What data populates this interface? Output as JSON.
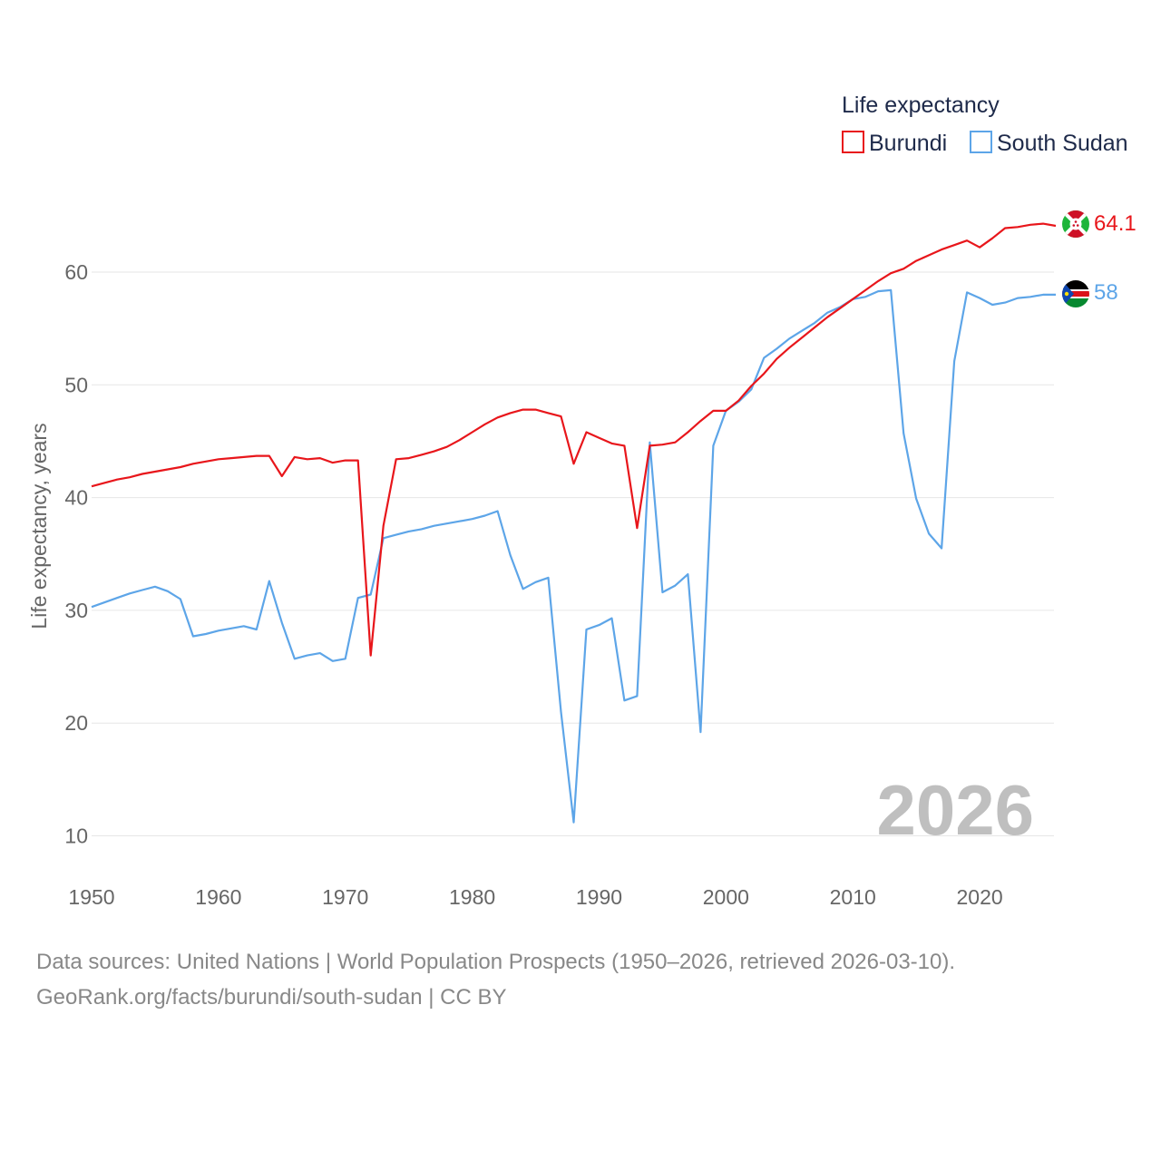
{
  "chart_data": {
    "type": "line",
    "title": "",
    "xlabel": "",
    "ylabel": "Life expectancy, years",
    "xlim": [
      1950,
      2026
    ],
    "ylim": [
      5,
      70
    ],
    "yticks": [
      10,
      20,
      30,
      40,
      50,
      60
    ],
    "xticks": [
      1950,
      1960,
      1970,
      1980,
      1990,
      2000,
      2010,
      2020
    ],
    "grid": "horizontal",
    "legend_title": "Life expectancy",
    "legend_position": "top-right",
    "year_watermark": "2026",
    "x": [
      1950,
      1951,
      1952,
      1953,
      1954,
      1955,
      1956,
      1957,
      1958,
      1959,
      1960,
      1961,
      1962,
      1963,
      1964,
      1965,
      1966,
      1967,
      1968,
      1969,
      1970,
      1971,
      1972,
      1973,
      1974,
      1975,
      1976,
      1977,
      1978,
      1979,
      1980,
      1981,
      1982,
      1983,
      1984,
      1985,
      1986,
      1987,
      1988,
      1989,
      1990,
      1991,
      1992,
      1993,
      1994,
      1995,
      1996,
      1997,
      1998,
      1999,
      2000,
      2001,
      2002,
      2003,
      2004,
      2005,
      2006,
      2007,
      2008,
      2009,
      2010,
      2011,
      2012,
      2013,
      2014,
      2015,
      2016,
      2017,
      2018,
      2019,
      2020,
      2021,
      2022,
      2023,
      2024,
      2025,
      2026
    ],
    "series": [
      {
        "name": "Burundi",
        "color": "#e8161b",
        "end_label": "64.1",
        "values": [
          41.0,
          41.3,
          41.6,
          41.8,
          42.1,
          42.3,
          42.5,
          42.7,
          43.0,
          43.2,
          43.4,
          43.5,
          43.6,
          43.7,
          43.7,
          41.9,
          43.6,
          43.4,
          43.5,
          43.1,
          43.3,
          43.3,
          26.0,
          37.5,
          43.4,
          43.5,
          43.8,
          44.1,
          44.5,
          45.1,
          45.8,
          46.5,
          47.1,
          47.5,
          47.8,
          47.8,
          47.5,
          47.2,
          43.0,
          45.8,
          45.3,
          44.8,
          44.6,
          37.3,
          44.6,
          44.7,
          44.9,
          45.8,
          46.8,
          47.7,
          47.7,
          48.6,
          49.9,
          51.0,
          52.3,
          53.3,
          54.2,
          55.1,
          56.0,
          56.8,
          57.6,
          58.4,
          59.2,
          59.9,
          60.3,
          61.0,
          61.5,
          62.0,
          62.4,
          62.8,
          62.2,
          63.0,
          63.9,
          64.0,
          64.2,
          64.3,
          64.1
        ]
      },
      {
        "name": "South Sudan",
        "color": "#5da5e8",
        "end_label": "58",
        "values": [
          30.3,
          30.7,
          31.1,
          31.5,
          31.8,
          32.1,
          31.7,
          31.0,
          27.7,
          27.9,
          28.2,
          28.4,
          28.6,
          28.3,
          32.6,
          28.9,
          25.7,
          26.0,
          26.2,
          25.5,
          25.7,
          31.1,
          31.4,
          36.4,
          36.7,
          37.0,
          37.2,
          37.5,
          37.7,
          37.9,
          38.1,
          38.4,
          38.8,
          34.9,
          31.9,
          32.5,
          32.9,
          21.0,
          11.2,
          28.3,
          28.7,
          29.3,
          22.0,
          22.4,
          44.9,
          31.6,
          32.2,
          33.2,
          19.2,
          44.6,
          47.7,
          48.5,
          49.6,
          52.4,
          53.2,
          54.1,
          54.8,
          55.5,
          56.4,
          56.9,
          57.6,
          57.8,
          58.3,
          58.4,
          45.7,
          39.9,
          36.8,
          35.5,
          52.1,
          58.2,
          57.7,
          57.1,
          57.3,
          57.7,
          57.8,
          58.0,
          58.0
        ]
      }
    ]
  },
  "footer": {
    "line1": "Data sources: United Nations | World Population Prospects (1950–2026, retrieved 2026-03-10).",
    "line2": "GeoRank.org/facts/burundi/south-sudan | CC BY"
  },
  "flags": {
    "burundi": "burundi-flag-icon",
    "south_sudan": "south-sudan-flag-icon"
  }
}
